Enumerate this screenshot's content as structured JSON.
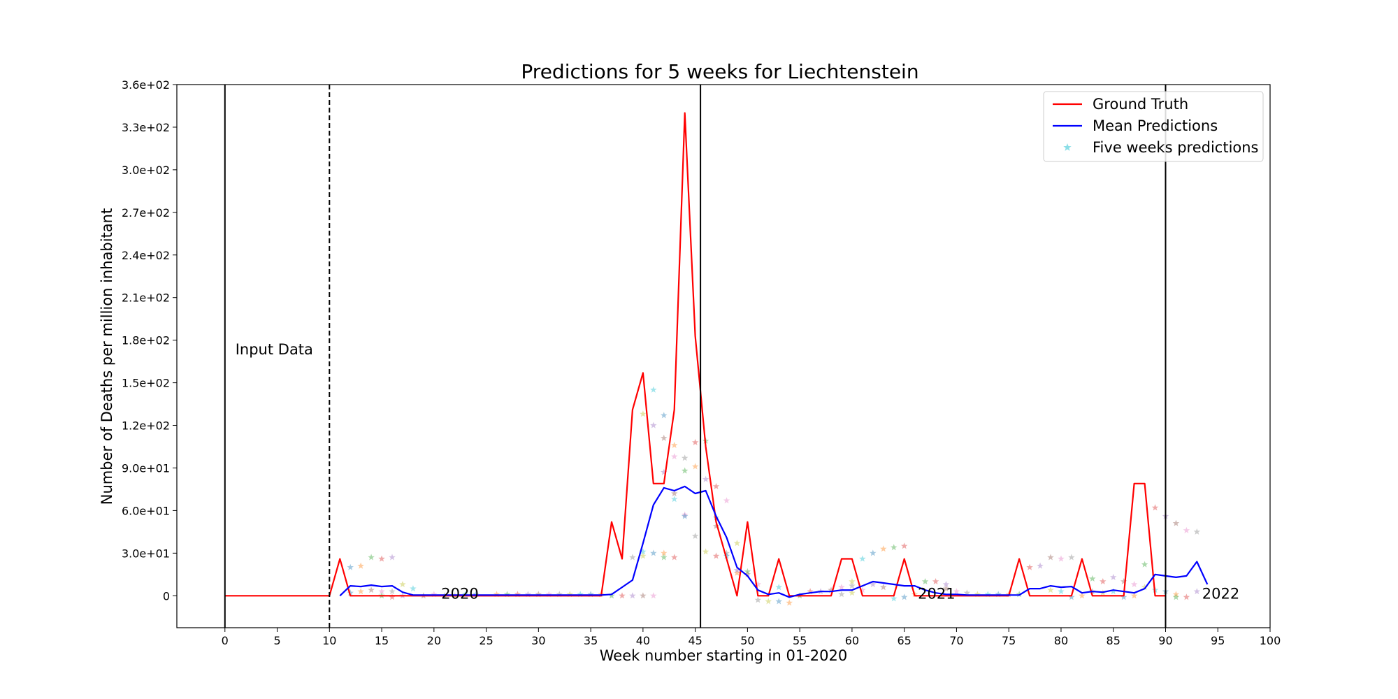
{
  "chart_data": {
    "type": "line",
    "title": "Predictions for 5 weeks for Liechtenstein",
    "xlabel": "Week number starting in 01-2020",
    "ylabel": "Number of Deaths per million inhabitant",
    "xlim": [
      -4.6,
      100
    ],
    "ylim": [
      -22.5,
      360
    ],
    "xticks": [
      0,
      5,
      10,
      15,
      20,
      25,
      30,
      35,
      40,
      45,
      50,
      55,
      60,
      65,
      70,
      75,
      80,
      85,
      90,
      95,
      100
    ],
    "xtick_labels": [
      "0",
      "5",
      "10",
      "15",
      "20",
      "25",
      "30",
      "35",
      "40",
      "45",
      "50",
      "55",
      "60",
      "65",
      "70",
      "75",
      "80",
      "85",
      "90",
      "95",
      "100"
    ],
    "yticks": [
      0,
      30,
      60,
      90,
      120,
      150,
      180,
      210,
      240,
      270,
      300,
      330,
      360
    ],
    "ytick_labels": [
      "0",
      "3.0e+01",
      "6.0e+01",
      "9.0e+01",
      "1.2e+02",
      "1.5e+02",
      "1.8e+02",
      "2.1e+02",
      "2.4e+02",
      "2.7e+02",
      "3.0e+02",
      "3.3e+02",
      "3.6e+02"
    ],
    "grid": false,
    "legend_position": "top-right",
    "legend": [
      {
        "label": "Ground Truth",
        "kind": "line",
        "color": "#ff0000"
      },
      {
        "label": "Mean Predictions",
        "kind": "line",
        "color": "#0000ff"
      },
      {
        "label": "Five weeks predictions",
        "kind": "star",
        "color": "#17becf"
      }
    ],
    "vertical_lines": [
      {
        "x": 0,
        "style": "solid"
      },
      {
        "x": 10,
        "style": "dashed"
      },
      {
        "x": 45.5,
        "style": "solid"
      },
      {
        "x": 90,
        "style": "solid"
      }
    ],
    "annotations": [
      {
        "text": "Input Data",
        "x": 1,
        "y": 170
      },
      {
        "text": "2020",
        "x": 20.7,
        "y": -2
      },
      {
        "text": "2021",
        "x": 66.3,
        "y": -2
      },
      {
        "text": "2022",
        "x": 93.5,
        "y": -2
      }
    ],
    "ground_truth": {
      "name": "Ground Truth",
      "color": "#ff0000",
      "x": [
        0,
        1,
        2,
        3,
        4,
        5,
        6,
        7,
        8,
        9,
        10,
        11,
        12,
        13,
        14,
        15,
        16,
        17,
        18,
        19,
        20,
        21,
        22,
        23,
        24,
        25,
        26,
        27,
        28,
        29,
        30,
        31,
        32,
        33,
        34,
        35,
        36,
        37,
        38,
        39,
        40,
        41,
        42,
        43,
        44,
        45,
        46,
        47,
        48,
        49,
        50,
        51,
        52,
        53,
        54,
        55,
        56,
        57,
        58,
        59,
        60,
        61,
        62,
        63,
        64,
        65,
        66,
        67,
        68,
        69,
        70,
        71,
        72,
        73,
        74,
        75,
        76,
        77,
        78,
        79,
        80,
        81,
        82,
        83,
        84,
        85,
        86,
        87,
        88,
        89,
        90
      ],
      "y": [
        0,
        0,
        0,
        0,
        0,
        0,
        0,
        0,
        0,
        0,
        0,
        26,
        0,
        0,
        0,
        0,
        0,
        0,
        0,
        0,
        0,
        0,
        0,
        0,
        0,
        0,
        0,
        0,
        0,
        0,
        0,
        0,
        0,
        0,
        0,
        0,
        0,
        52,
        26,
        131,
        157,
        79,
        79,
        131,
        340,
        183,
        105,
        52,
        26,
        0,
        52,
        0,
        0,
        26,
        0,
        0,
        0,
        0,
        0,
        26,
        26,
        0,
        0,
        0,
        0,
        26,
        0,
        0,
        0,
        0,
        0,
        0,
        0,
        0,
        0,
        0,
        26,
        0,
        0,
        0,
        0,
        0,
        26,
        0,
        0,
        0,
        0,
        79,
        79,
        0,
        0
      ]
    },
    "mean_predictions": {
      "name": "Mean Predictions",
      "color": "#0000ff",
      "x": [
        11,
        12,
        13,
        14,
        15,
        16,
        17,
        18,
        19,
        20,
        21,
        22,
        23,
        24,
        25,
        26,
        27,
        28,
        29,
        30,
        31,
        32,
        33,
        34,
        35,
        36,
        37,
        38,
        39,
        40,
        41,
        42,
        43,
        44,
        45,
        46,
        47,
        48,
        49,
        50,
        51,
        52,
        53,
        54,
        55,
        56,
        57,
        58,
        59,
        60,
        61,
        62,
        63,
        64,
        65,
        66,
        67,
        68,
        69,
        70,
        71,
        72,
        73,
        74,
        75,
        76,
        77,
        78,
        79,
        80,
        81,
        82,
        83,
        84,
        85,
        86,
        87,
        88,
        89,
        90,
        91,
        92,
        93,
        94
      ],
      "y": [
        0,
        7,
        6.5,
        7.5,
        6.5,
        7,
        2.5,
        0.5,
        0.5,
        0.5,
        0.5,
        0.5,
        0.5,
        0.5,
        0.5,
        0.5,
        0.5,
        0.5,
        0.5,
        0.5,
        0.5,
        0.5,
        0.5,
        0.5,
        0.5,
        0.5,
        1,
        6,
        11,
        37,
        64,
        76,
        74,
        77,
        72,
        74,
        56,
        41,
        20,
        14,
        4,
        1,
        2,
        -1,
        1,
        2,
        3,
        3,
        4,
        4,
        7,
        10,
        9,
        8,
        7,
        7,
        4,
        2,
        1,
        1,
        0.5,
        0.5,
        0.5,
        0.5,
        0.5,
        0.5,
        5,
        5,
        7,
        6,
        6.5,
        2,
        3,
        2.5,
        4,
        3,
        2,
        5,
        15,
        14,
        13,
        14,
        24,
        8
      ]
    },
    "five_week_predictions": {
      "name": "Five weeks predictions",
      "points": [
        [
          12,
          20
        ],
        [
          13,
          21
        ],
        [
          14,
          27
        ],
        [
          15,
          26
        ],
        [
          16,
          27
        ],
        [
          14,
          4
        ],
        [
          15,
          3
        ],
        [
          16,
          3
        ],
        [
          17,
          8
        ],
        [
          18,
          5
        ],
        [
          12,
          2
        ],
        [
          13,
          3
        ],
        [
          15,
          0
        ],
        [
          16,
          -1
        ],
        [
          17,
          0
        ],
        [
          19,
          0
        ],
        [
          20,
          1
        ],
        [
          21,
          0
        ],
        [
          22,
          0
        ],
        [
          23,
          1
        ],
        [
          24,
          1
        ],
        [
          26,
          1
        ],
        [
          27,
          1
        ],
        [
          28,
          1
        ],
        [
          29,
          1
        ],
        [
          30,
          1
        ],
        [
          31,
          1
        ],
        [
          32,
          1
        ],
        [
          33,
          1
        ],
        [
          34,
          1
        ],
        [
          35,
          1
        ],
        [
          36,
          1
        ],
        [
          37,
          0
        ],
        [
          38,
          0
        ],
        [
          39,
          0
        ],
        [
          40,
          0
        ],
        [
          41,
          0
        ],
        [
          39,
          27
        ],
        [
          40,
          28
        ],
        [
          40,
          31
        ],
        [
          41,
          30
        ],
        [
          42,
          30
        ],
        [
          42,
          27
        ],
        [
          43,
          27
        ],
        [
          41,
          120
        ],
        [
          42,
          111
        ],
        [
          43,
          98
        ],
        [
          44,
          97
        ],
        [
          40,
          128
        ],
        [
          41,
          145
        ],
        [
          42,
          127
        ],
        [
          43,
          106
        ],
        [
          44,
          88
        ],
        [
          45,
          108
        ],
        [
          42,
          87
        ],
        [
          43,
          72
        ],
        [
          44,
          57
        ],
        [
          45,
          42
        ],
        [
          46,
          31
        ],
        [
          43,
          68
        ],
        [
          44,
          56
        ],
        [
          45,
          91
        ],
        [
          46,
          109
        ],
        [
          47,
          77
        ],
        [
          46,
          82
        ],
        [
          47,
          49
        ],
        [
          48,
          67
        ],
        [
          48,
          30
        ],
        [
          49,
          37
        ],
        [
          47,
          55
        ],
        [
          48,
          28
        ],
        [
          49,
          16
        ],
        [
          50,
          17
        ],
        [
          47,
          28
        ],
        [
          49,
          18
        ],
        [
          50,
          15
        ],
        [
          51,
          8
        ],
        [
          51,
          -3
        ],
        [
          52,
          -4
        ],
        [
          53,
          6
        ],
        [
          53,
          -4
        ],
        [
          54,
          -5
        ],
        [
          55,
          0
        ],
        [
          56,
          3
        ],
        [
          57,
          3
        ],
        [
          58,
          4
        ],
        [
          59,
          6
        ],
        [
          60,
          7
        ],
        [
          60,
          10
        ],
        [
          61,
          26
        ],
        [
          62,
          30
        ],
        [
          63,
          33
        ],
        [
          64,
          34
        ],
        [
          65,
          35
        ],
        [
          62,
          8
        ],
        [
          63,
          6
        ],
        [
          61,
          4
        ],
        [
          59,
          1
        ],
        [
          60,
          2
        ],
        [
          64,
          -2
        ],
        [
          65,
          -1
        ],
        [
          66,
          1
        ],
        [
          67,
          10
        ],
        [
          68,
          10
        ],
        [
          69,
          8
        ],
        [
          69,
          5
        ],
        [
          70,
          3
        ],
        [
          71,
          2
        ],
        [
          72,
          1
        ],
        [
          73,
          1
        ],
        [
          74,
          1
        ],
        [
          75,
          1
        ],
        [
          76,
          1
        ],
        [
          77,
          20
        ],
        [
          78,
          21
        ],
        [
          79,
          27
        ],
        [
          80,
          26
        ],
        [
          81,
          27
        ],
        [
          79,
          4
        ],
        [
          80,
          3
        ],
        [
          81,
          -1
        ],
        [
          82,
          0
        ],
        [
          83,
          12
        ],
        [
          84,
          10
        ],
        [
          85,
          13
        ],
        [
          86,
          10
        ],
        [
          87,
          8
        ],
        [
          83,
          3
        ],
        [
          84,
          2
        ],
        [
          85,
          3
        ],
        [
          86,
          -1
        ],
        [
          87,
          0
        ],
        [
          88,
          22
        ],
        [
          89,
          62
        ],
        [
          90,
          56
        ],
        [
          91,
          51
        ],
        [
          92,
          46
        ],
        [
          93,
          45
        ],
        [
          88,
          6
        ],
        [
          89,
          4
        ],
        [
          90,
          3
        ],
        [
          91,
          1
        ],
        [
          91,
          -1
        ],
        [
          92,
          -1
        ],
        [
          93,
          3
        ]
      ],
      "colors": [
        "#1f77b4",
        "#ff7f0e",
        "#2ca02c",
        "#d62728",
        "#9467bd",
        "#8c564b",
        "#e377c2",
        "#7f7f7f",
        "#bcbd22",
        "#17becf"
      ]
    }
  }
}
